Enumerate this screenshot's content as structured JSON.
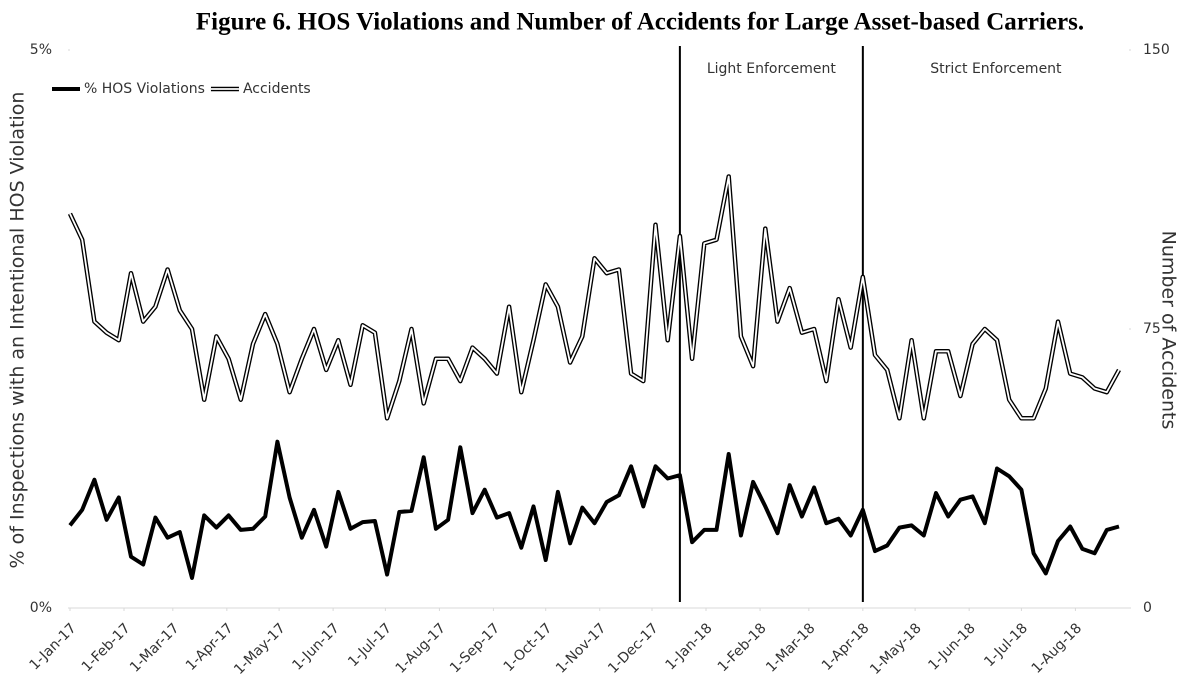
{
  "chart_data": {
    "type": "line",
    "title": "Figure 6.  HOS Violations and Number of Accidents for Large Asset-based Carriers.",
    "ylabel": "% of Inspections with an Intentional HOS Violation",
    "y2label": "Number of Accidents",
    "legend": "upper left",
    "x": [
      "2017-01-01",
      "2017-01-08",
      "2017-01-15",
      "2017-01-22",
      "2017-01-29",
      "2017-02-05",
      "2017-02-12",
      "2017-02-19",
      "2017-02-26",
      "2017-03-05",
      "2017-03-12",
      "2017-03-19",
      "2017-03-26",
      "2017-04-02",
      "2017-04-09",
      "2017-04-16",
      "2017-04-23",
      "2017-04-30",
      "2017-05-07",
      "2017-05-14",
      "2017-05-21",
      "2017-05-28",
      "2017-06-04",
      "2017-06-11",
      "2017-06-18",
      "2017-06-25",
      "2017-07-02",
      "2017-07-09",
      "2017-07-16",
      "2017-07-23",
      "2017-07-30",
      "2017-08-06",
      "2017-08-13",
      "2017-08-20",
      "2017-08-27",
      "2017-09-03",
      "2017-09-10",
      "2017-09-17",
      "2017-09-24",
      "2017-10-01",
      "2017-10-08",
      "2017-10-15",
      "2017-10-22",
      "2017-10-29",
      "2017-11-05",
      "2017-11-12",
      "2017-11-19",
      "2017-11-26",
      "2017-12-03",
      "2017-12-10",
      "2017-12-17",
      "2017-12-24",
      "2017-12-31",
      "2018-01-07",
      "2018-01-14",
      "2018-01-21",
      "2018-01-28",
      "2018-02-04",
      "2018-02-11",
      "2018-02-18",
      "2018-02-25",
      "2018-03-04",
      "2018-03-11",
      "2018-03-18",
      "2018-03-25",
      "2018-04-01",
      "2018-04-08",
      "2018-04-15",
      "2018-04-22",
      "2018-04-29",
      "2018-05-06",
      "2018-05-13",
      "2018-05-20",
      "2018-05-27",
      "2018-06-03",
      "2018-06-10",
      "2018-06-17",
      "2018-06-24",
      "2018-07-01",
      "2018-07-08",
      "2018-07-15",
      "2018-07-22",
      "2018-07-29",
      "2018-08-05",
      "2018-08-12",
      "2018-08-19",
      "2018-08-26"
    ],
    "xlim": [
      "2017-01-01",
      "2018-08-26"
    ],
    "xticks": [
      {
        "value": "2017-01-01",
        "label": "1-Jan-17"
      },
      {
        "value": "2017-02-01",
        "label": "1-Feb-17"
      },
      {
        "value": "2017-03-01",
        "label": "1-Mar-17"
      },
      {
        "value": "2017-04-01",
        "label": "1-Apr-17"
      },
      {
        "value": "2017-05-01",
        "label": "1-May-17"
      },
      {
        "value": "2017-06-01",
        "label": "1-Jun-17"
      },
      {
        "value": "2017-07-01",
        "label": "1-Jul-17"
      },
      {
        "value": "2017-08-01",
        "label": "1-Aug-17"
      },
      {
        "value": "2017-09-01",
        "label": "1-Sep-17"
      },
      {
        "value": "2017-10-01",
        "label": "1-Oct-17"
      },
      {
        "value": "2017-11-01",
        "label": "1-Nov-17"
      },
      {
        "value": "2017-12-01",
        "label": "1-Dec-17"
      },
      {
        "value": "2018-01-01",
        "label": "1-Jan-18"
      },
      {
        "value": "2018-02-01",
        "label": "1-Feb-18"
      },
      {
        "value": "2018-03-01",
        "label": "1-Mar-18"
      },
      {
        "value": "2018-04-01",
        "label": "1-Apr-18"
      },
      {
        "value": "2018-05-01",
        "label": "1-May-18"
      },
      {
        "value": "2018-06-01",
        "label": "1-Jun-18"
      },
      {
        "value": "2018-07-01",
        "label": "1-Jul-18"
      },
      {
        "value": "2018-08-01",
        "label": "1-Aug-18"
      }
    ],
    "ylim": [
      0,
      5
    ],
    "yticks": [
      {
        "value": 0,
        "label": "0%"
      },
      {
        "value": 5,
        "label": "5%"
      }
    ],
    "y2lim": [
      0,
      150
    ],
    "y2ticks": [
      0,
      75,
      150
    ],
    "annotations": [
      {
        "x": "2017-12-17",
        "label": "Light Enforcement"
      },
      {
        "x": "2018-04-01",
        "label": "Strict Enforcement"
      }
    ],
    "series": [
      {
        "name": "% HOS Violations",
        "color": "#000000",
        "values": [
          0.74,
          0.88,
          1.15,
          0.79,
          0.99,
          0.46,
          0.39,
          0.81,
          0.63,
          0.68,
          0.27,
          0.83,
          0.72,
          0.83,
          0.7,
          0.71,
          0.82,
          1.49,
          0.99,
          0.63,
          0.88,
          0.55,
          1.04,
          0.71,
          0.77,
          0.78,
          0.3,
          0.86,
          0.87,
          1.35,
          0.71,
          0.79,
          1.44,
          0.85,
          1.06,
          0.81,
          0.85,
          0.54,
          0.91,
          0.43,
          1.04,
          0.58,
          0.9,
          0.76,
          0.95,
          1.01,
          1.27,
          0.91,
          1.27,
          1.16,
          1.19,
          0.59,
          0.7,
          0.7,
          1.38,
          0.65,
          1.13,
          0.91,
          0.67,
          1.1,
          0.82,
          1.08,
          0.76,
          0.8,
          0.65,
          0.88,
          0.51,
          0.56,
          0.72,
          0.74,
          0.65,
          1.03,
          0.82,
          0.97,
          1.0,
          0.76,
          1.25,
          1.18,
          1.06,
          0.49,
          0.31,
          0.6,
          0.73,
          0.53,
          0.49,
          0.7,
          0.73
        ]
      },
      {
        "name": "Accidents",
        "color": "#ffffff",
        "edge_color": "#000000",
        "axis": "y2",
        "values": [
          106,
          99,
          77,
          74,
          72,
          90,
          77,
          81,
          91,
          80,
          75,
          56,
          73,
          67,
          56,
          71,
          79,
          71,
          58,
          67,
          75,
          64,
          72,
          60,
          76,
          74,
          51,
          61,
          75,
          55,
          67,
          67,
          61,
          70,
          67,
          63,
          81,
          58,
          72,
          87,
          81,
          66,
          73,
          94,
          90,
          91,
          63,
          61,
          103,
          72,
          100,
          67,
          98,
          99,
          116,
          73,
          65,
          102,
          77,
          86,
          74,
          75,
          61,
          83,
          70,
          89,
          68,
          64,
          51,
          72,
          51,
          69,
          69,
          57,
          71,
          75,
          72,
          56,
          51,
          51,
          59,
          77,
          63,
          62,
          59,
          58,
          64
        ]
      }
    ]
  }
}
